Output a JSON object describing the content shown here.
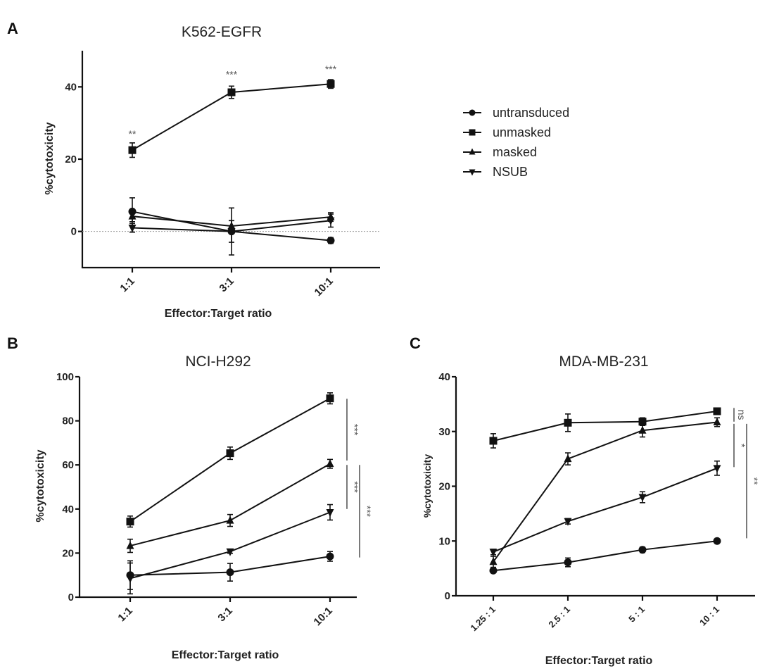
{
  "legend": {
    "items": [
      {
        "label": "untransduced",
        "marker": "circle"
      },
      {
        "label": "unmasked",
        "marker": "square"
      },
      {
        "label": "masked",
        "marker": "triangle-up"
      },
      {
        "label": "NSUB",
        "marker": "triangle-down"
      }
    ]
  },
  "chart_data": [
    {
      "panel": "A",
      "type": "line",
      "title": "K562-EGFR",
      "xlabel": "Effector:Target ratio",
      "ylabel": "%cytotoxicity",
      "categories": [
        "1:1",
        "3:1",
        "10:1"
      ],
      "ylim": [
        -10,
        50
      ],
      "yticks": [
        0,
        20,
        40
      ],
      "zero_line": true,
      "series": [
        {
          "name": "untransduced",
          "marker": "circle",
          "values": [
            5.5,
            0,
            -2.5
          ],
          "errors": [
            3.8,
            6.5,
            0.8
          ]
        },
        {
          "name": "unmasked",
          "marker": "square",
          "values": [
            22.5,
            38.5,
            40.8
          ],
          "errors": [
            2.0,
            1.7,
            1.2
          ]
        },
        {
          "name": "masked",
          "marker": "triangle-up",
          "values": [
            4.2,
            1.5,
            4.0
          ],
          "errors": [
            1.5,
            1.5,
            1.2
          ]
        },
        {
          "name": "NSUB",
          "marker": "triangle-down",
          "values": [
            1.0,
            0,
            3.0
          ],
          "errors": [
            1.2,
            3.0,
            1.8
          ]
        }
      ],
      "annotations": [
        {
          "text": "**",
          "category": "1:1",
          "y": 26
        },
        {
          "text": "***",
          "category": "3:1",
          "y": 42.5
        },
        {
          "text": "***",
          "category": "10:1",
          "y": 44
        }
      ]
    },
    {
      "panel": "B",
      "type": "line",
      "title": "NCI-H292",
      "xlabel": "Effector:Target ratio",
      "ylabel": "%cytotoxicity",
      "categories": [
        "1:1",
        "3:1",
        "10:1"
      ],
      "ylim": [
        0,
        100
      ],
      "yticks": [
        0,
        20,
        40,
        60,
        80,
        100
      ],
      "series": [
        {
          "name": "untransduced",
          "marker": "circle",
          "values": [
            10,
            11.3,
            18.5
          ],
          "errors": [
            6.5,
            4.0,
            2.2
          ]
        },
        {
          "name": "unmasked",
          "marker": "square",
          "values": [
            34.3,
            65.3,
            90.2
          ],
          "errors": [
            2.5,
            2.8,
            2.5
          ]
        },
        {
          "name": "masked",
          "marker": "triangle-up",
          "values": [
            23.3,
            34.8,
            60.5
          ],
          "errors": [
            3.0,
            2.7,
            2.0
          ]
        },
        {
          "name": "NSUB",
          "marker": "triangle-down",
          "values": [
            8.5,
            20.7,
            38.5
          ],
          "errors": [
            7.0,
            0.8,
            3.5
          ]
        }
      ],
      "significance": [
        {
          "text": "***",
          "from": 62,
          "to": 90,
          "column": 0
        },
        {
          "text": "***",
          "from": 40,
          "to": 60,
          "column": 0
        },
        {
          "text": "***",
          "from": 18,
          "to": 60,
          "column": 1
        }
      ]
    },
    {
      "panel": "C",
      "type": "line",
      "title": "MDA-MB-231",
      "xlabel": "Effector:Target ratio",
      "ylabel": "%cytotoxicity",
      "categories": [
        "1.25 : 1",
        "2.5 : 1",
        "5 : 1",
        "10 : 1"
      ],
      "ylim": [
        0,
        40
      ],
      "yticks": [
        0,
        10,
        20,
        30,
        40
      ],
      "series": [
        {
          "name": "untransduced",
          "marker": "circle",
          "values": [
            4.6,
            6.1,
            8.4,
            10.0
          ],
          "errors": [
            0.3,
            0.8,
            0.5,
            0.2
          ]
        },
        {
          "name": "unmasked",
          "marker": "square",
          "values": [
            28.3,
            31.6,
            31.8,
            33.7
          ],
          "errors": [
            1.3,
            1.6,
            0.7,
            0.3
          ]
        },
        {
          "name": "masked",
          "marker": "triangle-up",
          "values": [
            6.2,
            25.0,
            30.2,
            31.7
          ],
          "errors": [
            1.0,
            1.1,
            1.2,
            0.8
          ]
        },
        {
          "name": "NSUB",
          "marker": "triangle-down",
          "values": [
            8.0,
            13.6,
            18.0,
            23.3
          ],
          "errors": [
            0.5,
            0.5,
            1.0,
            1.3
          ]
        }
      ],
      "significance": [
        {
          "text": "ns",
          "from": 31.8,
          "to": 34.3,
          "column": 0
        },
        {
          "text": "*",
          "from": 23.5,
          "to": 31.4,
          "column": 0
        },
        {
          "text": "**",
          "from": 10.5,
          "to": 31.4,
          "column": 1
        }
      ]
    }
  ]
}
